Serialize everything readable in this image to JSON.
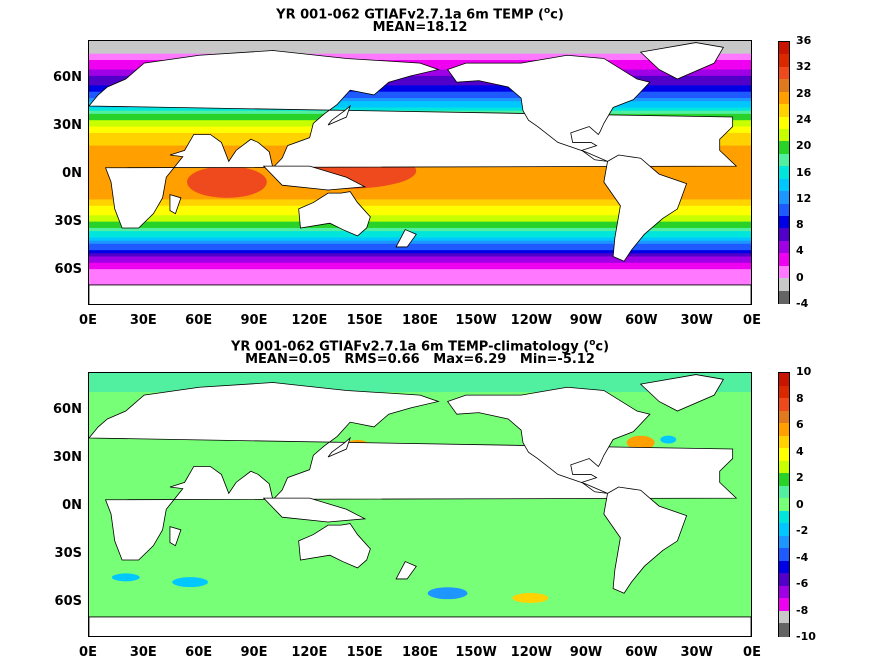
{
  "panels": [
    {
      "title_line1": "YR 001-062 GTIAFv2.7.1a 6m TEMP (",
      "title_sup": "o",
      "title_line1_end": "c)",
      "title_line2": "MEAN=18.12",
      "colorbar_labels": [
        "36",
        "32",
        "28",
        "24",
        "20",
        "16",
        "12",
        "8",
        "4",
        "0",
        "-4"
      ],
      "colorbar_colors": [
        "#c81400",
        "#dc2800",
        "#ee4a1e",
        "#e07a1e",
        "#ff9f00",
        "#ffd200",
        "#ffff00",
        "#c8ff00",
        "#28d228",
        "#50f0a0",
        "#00e6dc",
        "#00c8ff",
        "#1e96ff",
        "#1e5aff",
        "#0000e6",
        "#5000c8",
        "#a000e6",
        "#f000f0",
        "#ff78ff",
        "#c8c8c8",
        "#646464"
      ]
    },
    {
      "title_line1": "YR 001-062 GTIAFv2.7.1a 6m TEMP-climatology (",
      "title_sup": "o",
      "title_line1_end": "c)",
      "title_line2": "MEAN=0.05   RMS=0.66   Max=6.29   Min=-5.12",
      "colorbar_labels": [
        "10",
        "8",
        "6",
        "4",
        "2",
        "0",
        "-2",
        "-4",
        "-6",
        "-8",
        "-10"
      ],
      "colorbar_colors": [
        "#c81400",
        "#dc2800",
        "#ee4a1e",
        "#e07a1e",
        "#ff9f00",
        "#ffd200",
        "#ffff00",
        "#c8ff00",
        "#28d228",
        "#50f0a0",
        "#78ff78",
        "#00e6dc",
        "#00c8ff",
        "#1e96ff",
        "#1e5aff",
        "#0000e6",
        "#5000c8",
        "#a000e6",
        "#f000f0",
        "#c8c8c8",
        "#646464"
      ]
    }
  ],
  "ytick_labels": [
    "60N",
    "30N",
    "0N",
    "30S",
    "60S"
  ],
  "xtick_labels": [
    "0E",
    "30E",
    "60E",
    "90E",
    "120E",
    "150E",
    "180E",
    "150W",
    "120W",
    "90W",
    "60W",
    "30W",
    "0E"
  ],
  "chart_data": [
    {
      "type": "heatmap",
      "title": "YR 001-062 GTIAFv2.7.1a 6m TEMP (oc)",
      "subtitle": "MEAN=18.12",
      "x_ticks": [
        "0E",
        "30E",
        "60E",
        "90E",
        "120E",
        "150E",
        "180E",
        "150W",
        "120W",
        "90W",
        "60W",
        "30W",
        "0E"
      ],
      "y_ticks": [
        "60N",
        "30N",
        "0N",
        "30S",
        "60S"
      ],
      "colorbar": {
        "min": -4,
        "max": 36,
        "ticks": [
          36,
          32,
          28,
          24,
          20,
          16,
          12,
          8,
          4,
          0,
          -4
        ]
      },
      "zonal_profile": [
        {
          "lat": 75,
          "value": 0
        },
        {
          "lat": 65,
          "value": 4
        },
        {
          "lat": 50,
          "value": 10
        },
        {
          "lat": 40,
          "value": 18
        },
        {
          "lat": 30,
          "value": 24
        },
        {
          "lat": 15,
          "value": 28
        },
        {
          "lat": 0,
          "value": 29
        },
        {
          "lat": -15,
          "value": 27
        },
        {
          "lat": -30,
          "value": 21
        },
        {
          "lat": -40,
          "value": 14
        },
        {
          "lat": -50,
          "value": 6
        },
        {
          "lat": -60,
          "value": 1
        },
        {
          "lat": -70,
          "value": -1
        }
      ]
    },
    {
      "type": "heatmap",
      "title": "YR 001-062 GTIAFv2.7.1a 6m TEMP-climatology (oc)",
      "subtitle": "MEAN=0.05   RMS=0.66   Max=6.29   Min=-5.12",
      "x_ticks": [
        "0E",
        "30E",
        "60E",
        "90E",
        "120E",
        "150E",
        "180E",
        "150W",
        "120W",
        "90W",
        "60W",
        "30W",
        "0E"
      ],
      "y_ticks": [
        "60N",
        "30N",
        "0N",
        "30S",
        "60S"
      ],
      "colorbar": {
        "min": -10,
        "max": 10,
        "ticks": [
          10,
          8,
          6,
          4,
          2,
          0,
          -2,
          -4,
          -6,
          -8,
          -10
        ]
      },
      "stats": {
        "mean": 0.05,
        "rms": 0.66,
        "max": 6.29,
        "min": -5.12
      }
    }
  ]
}
